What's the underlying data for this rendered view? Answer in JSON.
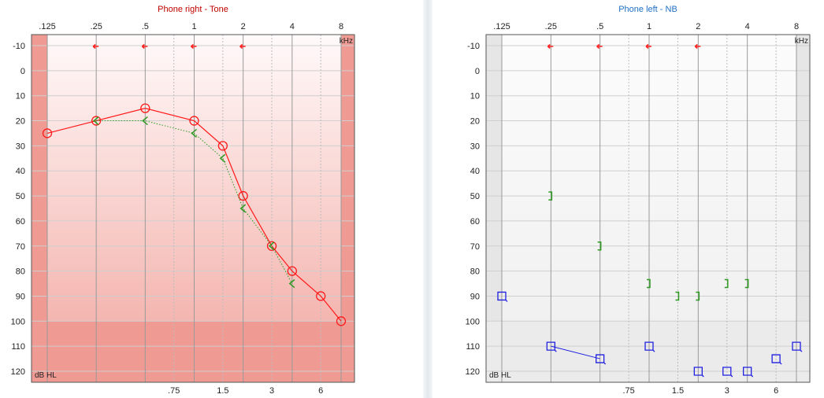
{
  "chart_data": [
    {
      "type": "scatter",
      "title": "Phone right - Tone",
      "title_color": "#c00000",
      "xlabel_unit": "kHz",
      "ylabel_unit": "dB HL",
      "x_ticks_top": [
        ".125",
        ".25",
        ".5",
        "1",
        "2",
        "4",
        "8"
      ],
      "x_ticks_bottom": [
        ".75",
        "1.5",
        "3",
        "6"
      ],
      "y_ticks": [
        "-10",
        "0",
        "10",
        "20",
        "30",
        "40",
        "50",
        "60",
        "70",
        "80",
        "90",
        "100",
        "110",
        "120"
      ],
      "ylim": [
        -10,
        120
      ],
      "shading": "red",
      "arrows_at": [
        0.25,
        0.5,
        1,
        2
      ],
      "arrow_level": -10,
      "arrow_color": "#ff2020",
      "series": [
        {
          "marker": "circle",
          "color": "#ff1a1a",
          "line": "solid",
          "x": [
            0.125,
            0.25,
            0.5,
            1,
            1.5,
            2,
            3,
            4,
            6,
            8
          ],
          "y": [
            25,
            20,
            15,
            20,
            30,
            50,
            70,
            80,
            90,
            100
          ]
        },
        {
          "marker": "chevron-left",
          "color": "#2e9a22",
          "line": "dotted",
          "x": [
            0.25,
            0.5,
            1,
            1.5,
            2,
            3,
            4
          ],
          "y": [
            20,
            20,
            25,
            35,
            55,
            70,
            85
          ]
        }
      ]
    },
    {
      "type": "scatter",
      "title": "Phone left - NB",
      "title_color": "#1f6fc4",
      "xlabel_unit": "kHz",
      "ylabel_unit": "dB HL",
      "x_ticks_top": [
        ".125",
        ".25",
        ".5",
        "1",
        "2",
        "4",
        "8"
      ],
      "x_ticks_bottom": [
        ".75",
        "1.5",
        "3",
        "6"
      ],
      "y_ticks": [
        "-10",
        "0",
        "10",
        "20",
        "30",
        "40",
        "50",
        "60",
        "70",
        "80",
        "90",
        "100",
        "110",
        "120"
      ],
      "ylim": [
        -10,
        120
      ],
      "shading": "gray",
      "arrows_at": [
        0.25,
        0.5,
        1,
        2
      ],
      "arrow_level": -10,
      "arrow_color": "#ff2020",
      "series": [
        {
          "marker": "square",
          "color": "#2020e0",
          "line": "segments",
          "segments": [
            [
              1,
              2
            ]
          ],
          "x": [
            0.125,
            0.25,
            0.5,
            1,
            2,
            3,
            4,
            6,
            8
          ],
          "y": [
            90,
            110,
            115,
            110,
            120,
            120,
            120,
            115,
            110
          ]
        },
        {
          "marker": "bracket-right",
          "color": "#2e9a22",
          "line": "none",
          "x": [
            0.25,
            0.5,
            1,
            1.5,
            2,
            3,
            4
          ],
          "y": [
            50,
            70,
            85,
            90,
            90,
            85,
            85
          ]
        }
      ]
    }
  ]
}
